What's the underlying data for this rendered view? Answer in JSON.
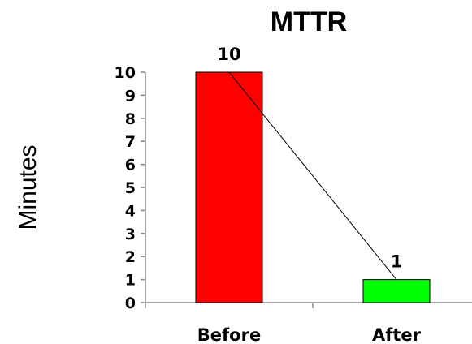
{
  "chart_data": {
    "type": "bar",
    "title": "MTTR",
    "ylabel": "Minutes",
    "xlabel": "",
    "categories": [
      "Before",
      "After"
    ],
    "values": [
      10,
      1
    ],
    "data_labels": [
      "10",
      "1"
    ],
    "ylim": [
      0,
      10
    ],
    "yticks": [
      0,
      1,
      2,
      3,
      4,
      5,
      6,
      7,
      8,
      9,
      10
    ],
    "bar_colors": [
      "#ff0000",
      "#00ff00"
    ],
    "trend_line": true,
    "grid": false,
    "legend": "none"
  }
}
